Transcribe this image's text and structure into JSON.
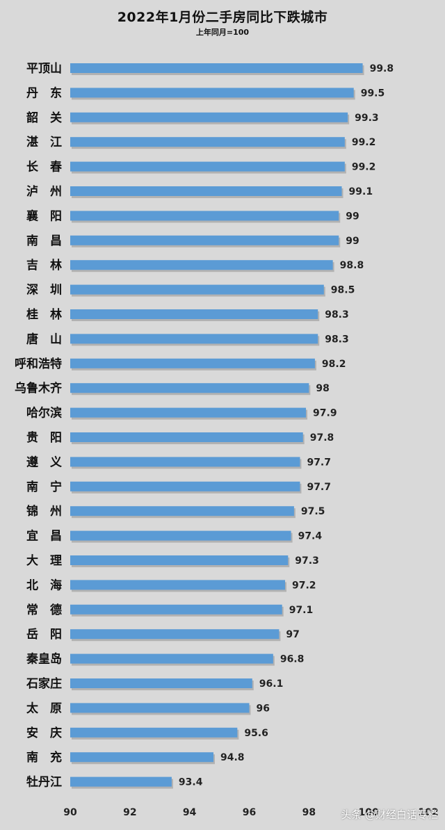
{
  "chart_data": {
    "type": "bar",
    "orientation": "horizontal",
    "title": "2022年1月份二手房同比下跌城市",
    "subtitle": "上年同月=100",
    "categories": [
      "平顶山",
      "丹　东",
      "韶　关",
      "湛　江",
      "长　春",
      "泸　州",
      "襄　阳",
      "南　昌",
      "吉　林",
      "深　圳",
      "桂　林",
      "唐　山",
      "呼和浩特",
      "乌鲁木齐",
      "哈尔滨",
      "贵　阳",
      "遵　义",
      "南　宁",
      "锦　州",
      "宜　昌",
      "大　理",
      "北　海",
      "常　德",
      "岳　阳",
      "秦皇岛",
      "石家庄",
      "太　原",
      "安　庆",
      "南　充",
      "牡丹江"
    ],
    "values": [
      99.8,
      99.5,
      99.3,
      99.2,
      99.2,
      99.1,
      99,
      99,
      98.8,
      98.5,
      98.3,
      98.3,
      98.2,
      98,
      97.9,
      97.8,
      97.7,
      97.7,
      97.5,
      97.4,
      97.3,
      97.2,
      97.1,
      97,
      96.8,
      96.1,
      96,
      95.6,
      94.8,
      93.4
    ],
    "xlim": [
      90,
      102
    ],
    "xticks": [
      90,
      92,
      94,
      96,
      98,
      100,
      102
    ],
    "grid": false,
    "legend": "none",
    "bar_color": "#5b9bd5"
  },
  "watermark": "头条 @财经白话专栏"
}
